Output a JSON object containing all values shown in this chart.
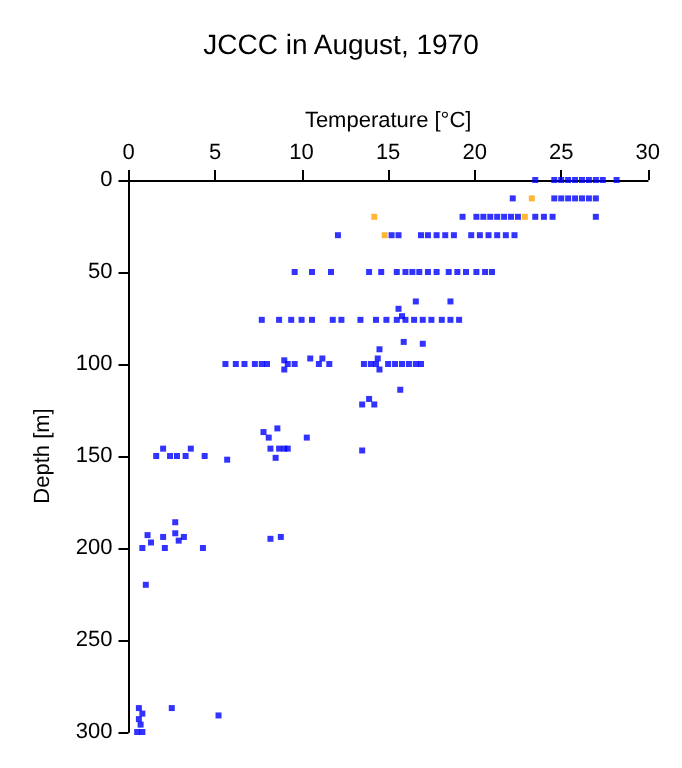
{
  "chart_data": {
    "type": "scatter",
    "title": "JCCC in August, 1970",
    "xlabel": "Temperature [°C]",
    "ylabel": "Depth [m]",
    "xlim": [
      0,
      30
    ],
    "xticks": [
      0,
      5,
      10,
      15,
      20,
      25,
      30
    ],
    "ylim": [
      300,
      0
    ],
    "yticks": [
      0,
      50,
      100,
      150,
      200,
      250,
      300
    ],
    "marker": "square",
    "series": [
      {
        "color": "#0000ff",
        "x": [
          23.5,
          24.6,
          25.0,
          25.4,
          25.8,
          26.2,
          26.6,
          27.0,
          27.4,
          28.2,
          22.2,
          24.6,
          25.0,
          25.4,
          25.8,
          26.2,
          26.6,
          27.0,
          19.3,
          20.1,
          20.5,
          20.9,
          21.3,
          21.7,
          22.1,
          22.5,
          23.5,
          24.0,
          24.5,
          27.0,
          12.1,
          15.2,
          15.6,
          16.9,
          17.3,
          17.8,
          18.3,
          18.8,
          19.8,
          20.3,
          20.8,
          21.3,
          21.8,
          22.3,
          9.6,
          10.6,
          11.7,
          13.9,
          14.6,
          15.5,
          16.0,
          16.4,
          16.8,
          17.3,
          17.8,
          18.5,
          19.0,
          19.5,
          20.1,
          20.6,
          21.0,
          16.6,
          18.6,
          15.6,
          15.8,
          7.7,
          8.7,
          9.4,
          10.0,
          10.6,
          11.8,
          12.3,
          13.4,
          14.3,
          14.9,
          15.5,
          16.0,
          16.5,
          17.0,
          17.5,
          18.1,
          18.6,
          19.1,
          15.9,
          17.0,
          14.5,
          5.6,
          6.2,
          6.7,
          7.3,
          7.7,
          8.0,
          9.2,
          9.6,
          11.0,
          11.6,
          13.6,
          14.0,
          14.3,
          15.0,
          15.4,
          15.8,
          16.2,
          16.6,
          16.9,
          9.0,
          9.0,
          10.5,
          11.2,
          14.4,
          14.5,
          15.7,
          13.5,
          13.9,
          14.2,
          7.8,
          8.6,
          8.1,
          10.3,
          13.5,
          1.6,
          2.4,
          2.8,
          3.3,
          4.4,
          2.0,
          3.6,
          8.2,
          8.7,
          9.0,
          9.2,
          5.7,
          8.5,
          1.1,
          1.3,
          0.8,
          2.1,
          4.3,
          2.0,
          3.2,
          8.8,
          2.7,
          2.7,
          2.9,
          8.2,
          1.0,
          0.6,
          2.5,
          0.8,
          0.6,
          0.7,
          0.5,
          0.8,
          5.2
        ],
        "values": [
          0,
          0,
          0,
          0,
          0,
          0,
          0,
          0,
          0,
          0,
          10,
          10,
          10,
          10,
          10,
          10,
          10,
          10,
          20,
          20,
          20,
          20,
          20,
          20,
          20,
          20,
          20,
          20,
          20,
          20,
          30,
          30,
          30,
          30,
          30,
          30,
          30,
          30,
          30,
          30,
          30,
          30,
          30,
          30,
          50,
          50,
          50,
          50,
          50,
          50,
          50,
          50,
          50,
          50,
          50,
          50,
          50,
          50,
          50,
          50,
          50,
          66,
          66,
          70,
          74,
          76,
          76,
          76,
          76,
          76,
          76,
          76,
          76,
          76,
          76,
          76,
          76,
          76,
          76,
          76,
          76,
          76,
          76,
          88,
          89,
          92,
          100,
          100,
          100,
          100,
          100,
          100,
          100,
          100,
          100,
          100,
          100,
          100,
          100,
          100,
          100,
          100,
          100,
          100,
          100,
          98,
          103,
          97,
          97,
          97,
          103,
          114,
          122,
          119,
          122,
          137,
          135,
          140,
          140,
          147,
          150,
          150,
          150,
          150,
          150,
          146,
          146,
          146,
          146,
          146,
          146,
          152,
          151,
          193,
          197,
          200,
          200,
          200,
          194,
          194,
          194,
          192,
          186,
          196,
          195,
          220,
          287,
          287,
          290,
          293,
          296,
          300,
          300,
          291
        ]
      },
      {
        "color": "#ffa500",
        "x": [
          23.3,
          14.2,
          22.9,
          14.8
        ],
        "values": [
          10,
          20,
          20,
          30
        ]
      }
    ]
  }
}
